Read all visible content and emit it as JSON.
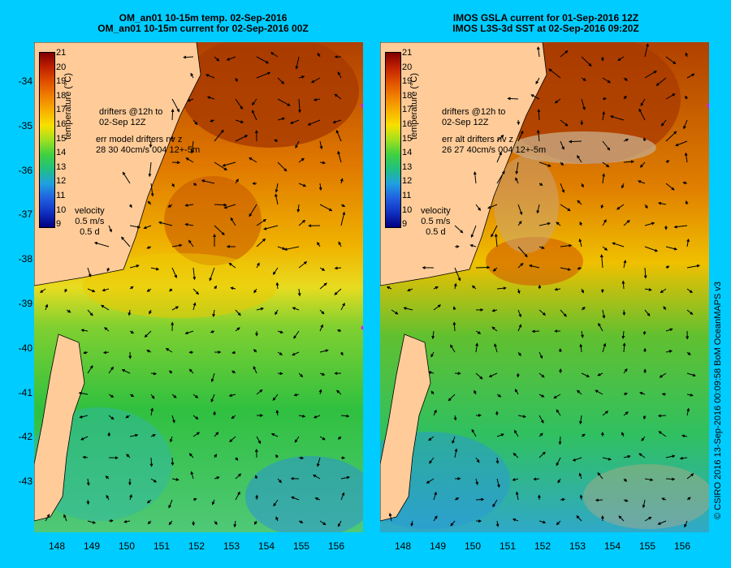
{
  "left": {
    "title_line1": "OM_an01 10-15m temp. 02-Sep-2016",
    "title_line2": "OM_an01 10-15m current for 02-Sep-2016 00Z",
    "drifters_line1": "drifters @12h to",
    "drifters_line2": "02-Sep 12Z",
    "err_line1": "err model drifters nv z",
    "err_line2": "28 30 40cm/s 004 12+-5m"
  },
  "right": {
    "title_line1": "IMOS GSLA current for 01-Sep-2016 12Z",
    "title_line2": "IMOS L3S-3d SST at 02-Sep-2016 09:20Z",
    "drifters_line1": "drifters @12h to",
    "drifters_line2": "02-Sep 12Z",
    "err_line1": "err alt drifters nv z",
    "err_line2": "26 27 40cm/s 004 12+-5m"
  },
  "velocity": {
    "label": "velocity",
    "speed": "0.5 m/s",
    "duration": "0.5 d"
  },
  "colorbar": {
    "title": "temperature (°C)",
    "ticks": [
      "21",
      "20",
      "19",
      "18",
      "17",
      "16",
      "15",
      "14",
      "13",
      "12",
      "11",
      "10",
      "9"
    ]
  },
  "lat_labels": [
    "-34",
    "-35",
    "-36",
    "-37",
    "-38",
    "-39",
    "-40",
    "-41",
    "-42",
    "-43"
  ],
  "lon_labels": [
    "148",
    "149",
    "150",
    "151",
    "152",
    "153",
    "154",
    "155",
    "156"
  ],
  "credit": "© CSIRO 2016  13-Sep-2016 00:09:58 BoM OceanMAPS v3",
  "colors": {
    "background": "#00ccff",
    "land": "#ffcc99",
    "cloud": "#c8a882"
  }
}
